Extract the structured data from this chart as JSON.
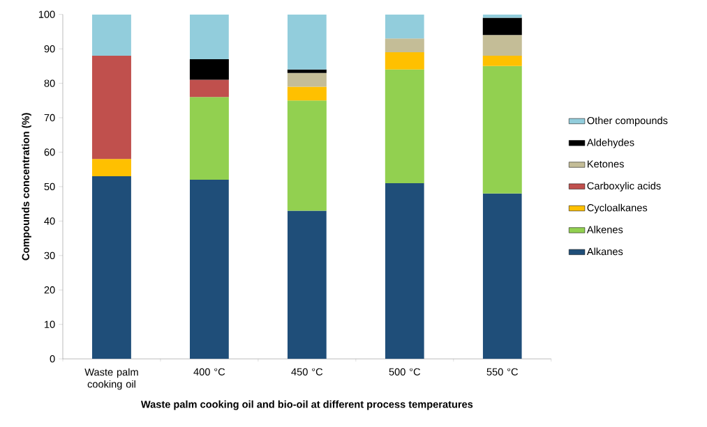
{
  "chart_data": {
    "type": "bar",
    "stacked": true,
    "xlabel": "Waste palm cooking oil and bio-oil at different process temperatures",
    "ylabel": "Compounds concentration (%)",
    "categories": [
      "Waste palm cooking oil",
      "400 °C",
      "450 °C",
      "500 °C",
      "550 °C"
    ],
    "ylim": [
      0,
      100
    ],
    "yticks": [
      0,
      10,
      20,
      30,
      40,
      50,
      60,
      70,
      80,
      90,
      100
    ],
    "grid": false,
    "legend": "right",
    "series": [
      {
        "name": "Alkanes",
        "color": "#1f4e79",
        "values": [
          53,
          52,
          43,
          51,
          48
        ]
      },
      {
        "name": "Alkenes",
        "color": "#92d050",
        "values": [
          null,
          24,
          32,
          33,
          37
        ]
      },
      {
        "name": "Cycloalkanes",
        "color": "#ffc000",
        "values": [
          5,
          null,
          4,
          5,
          3
        ]
      },
      {
        "name": "Carboxylic acids",
        "color": "#c0504d",
        "values": [
          30,
          5,
          null,
          null,
          null
        ]
      },
      {
        "name": "Ketones",
        "color": "#c4bd97",
        "values": [
          null,
          null,
          4,
          4,
          6
        ]
      },
      {
        "name": "Aldehydes",
        "color": "#000000",
        "values": [
          null,
          6,
          1,
          null,
          5
        ]
      },
      {
        "name": "Other compounds",
        "color": "#92cddc",
        "values": [
          12,
          13,
          16,
          7,
          1
        ]
      }
    ]
  }
}
